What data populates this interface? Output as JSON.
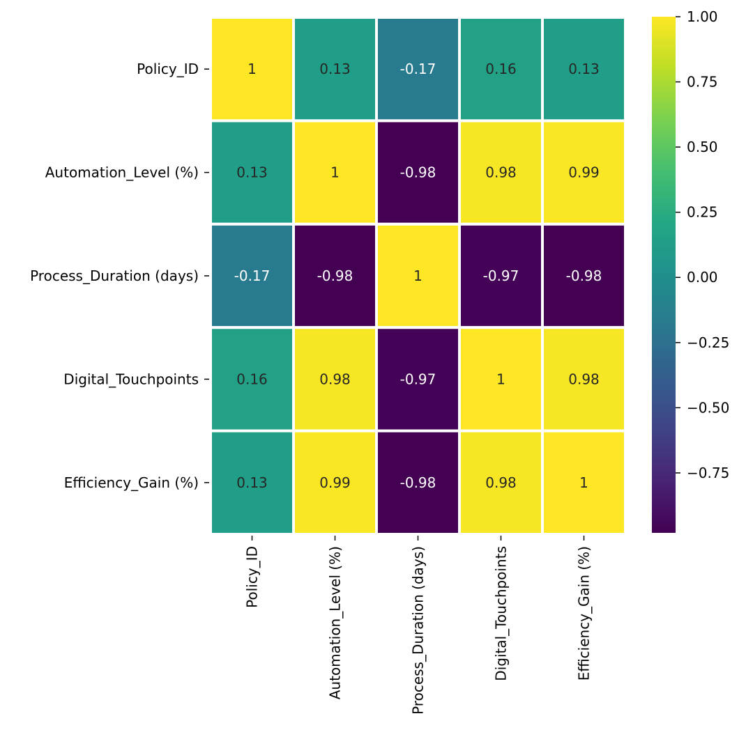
{
  "chart_data": {
    "type": "heatmap",
    "title": "",
    "xlabel": "",
    "ylabel": "",
    "row_labels": [
      "Policy_ID",
      "Automation_Level (%)",
      "Process_Duration (days)",
      "Digital_Touchpoints",
      "Efficiency_Gain (%)"
    ],
    "col_labels": [
      "Policy_ID",
      "Automation_Level (%)",
      "Process_Duration (days)",
      "Digital_Touchpoints",
      "Efficiency_Gain (%)"
    ],
    "values": [
      [
        1.0,
        0.13,
        -0.17,
        0.16,
        0.13
      ],
      [
        0.13,
        1.0,
        -0.98,
        0.98,
        0.99
      ],
      [
        -0.17,
        -0.98,
        1.0,
        -0.97,
        -0.98
      ],
      [
        0.16,
        0.98,
        -0.97,
        1.0,
        0.98
      ],
      [
        0.13,
        0.99,
        -0.98,
        0.98,
        1.0
      ]
    ],
    "annotations": [
      [
        "1",
        "0.13",
        "-0.17",
        "0.16",
        "0.13"
      ],
      [
        "0.13",
        "1",
        "-0.98",
        "0.98",
        "0.99"
      ],
      [
        "-0.17",
        "-0.98",
        "1",
        "-0.97",
        "-0.98"
      ],
      [
        "0.16",
        "0.98",
        "-0.97",
        "1",
        "0.98"
      ],
      [
        "0.13",
        "0.99",
        "-0.98",
        "0.98",
        "1"
      ]
    ],
    "colormap": "viridis",
    "vmin": -0.98,
    "vmax": 1.0,
    "colorbar": {
      "ticks": [
        1.0,
        0.75,
        0.5,
        0.25,
        0.0,
        -0.25,
        -0.5,
        -0.75
      ],
      "tick_labels": [
        "1.00",
        "0.75",
        "0.50",
        "0.25",
        "0.00",
        "−0.25",
        "−0.50",
        "−0.75"
      ]
    },
    "annotation_text_colors": {
      "dark": "#262626",
      "light": "#ffffff"
    },
    "cell_border_color": "#ffffff"
  }
}
